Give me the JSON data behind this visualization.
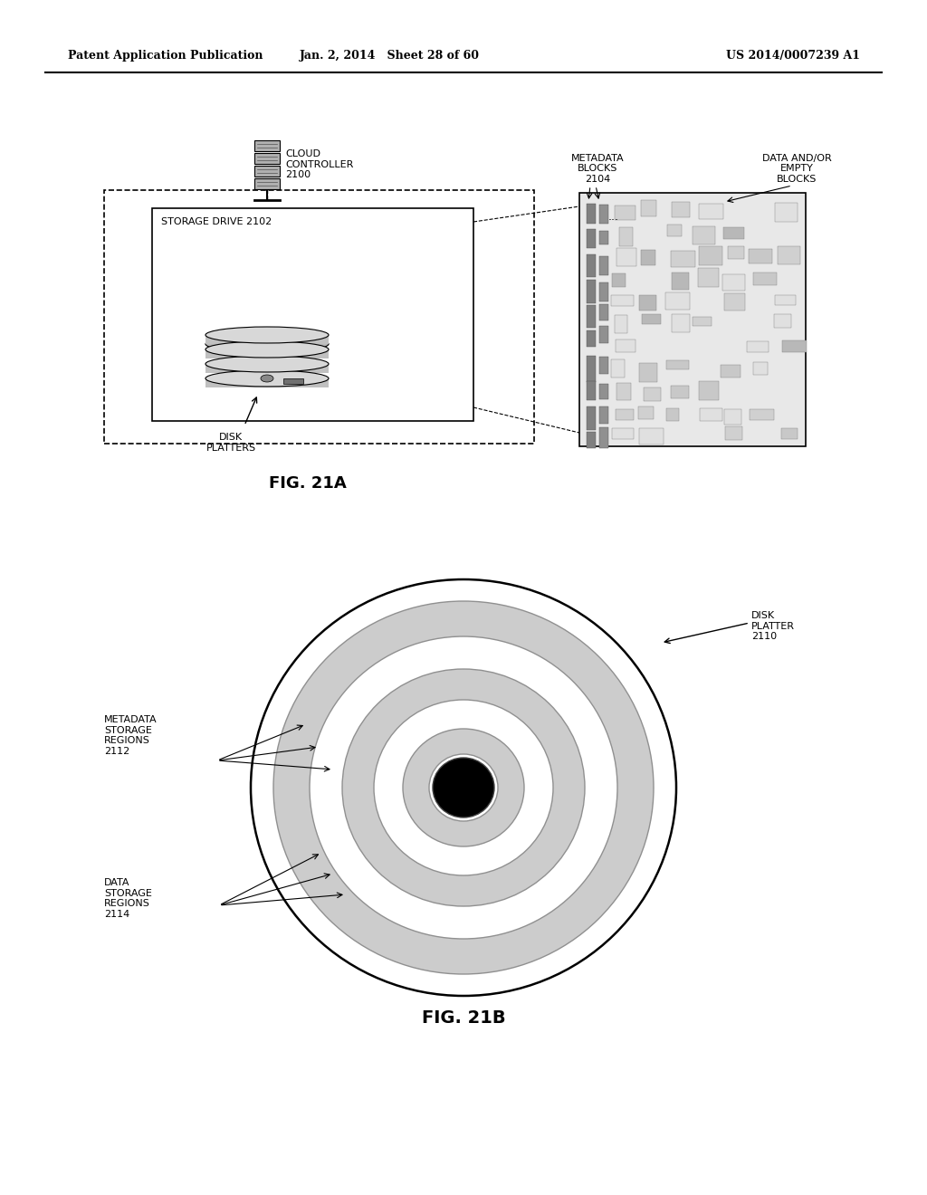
{
  "bg_color": "#ffffff",
  "header_left": "Patent Application Publication",
  "header_mid": "Jan. 2, 2014   Sheet 28 of 60",
  "header_right": "US 2014/0007239 A1",
  "fig21a_label": "FIG. 21A",
  "fig21b_label": "FIG. 21B",
  "gray_color": "#c8c8c8",
  "gray_dark": "#909090",
  "line_color": "#000000"
}
